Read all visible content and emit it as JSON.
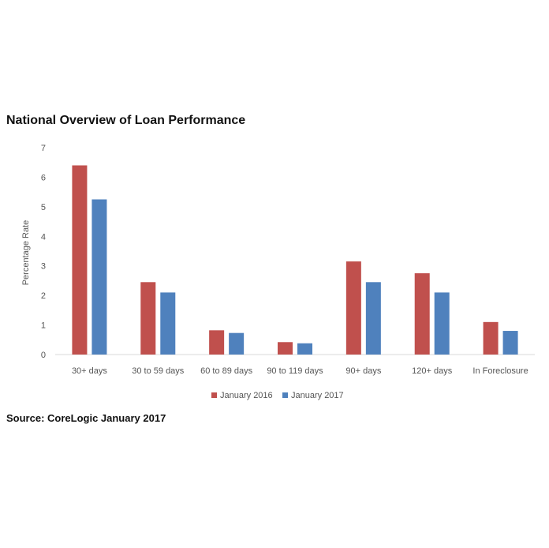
{
  "chart_data": {
    "type": "bar",
    "title": "National Overview of Loan Performance",
    "ylabel": "Percentage Rate",
    "xlabel": "",
    "ylim": [
      0,
      7
    ],
    "yticks": [
      0,
      1,
      2,
      3,
      4,
      5,
      6,
      7
    ],
    "grid": false,
    "legend_position": "bottom",
    "categories": [
      "30+ days",
      "30 to 59 days",
      "60 to 89 days",
      "90 to 119 days",
      "90+ days",
      "120+ days",
      "In Foreclosure"
    ],
    "series": [
      {
        "name": "January 2016",
        "color": "#c0504d",
        "values": [
          6.4,
          2.45,
          0.82,
          0.42,
          3.15,
          2.75,
          1.1
        ]
      },
      {
        "name": "January 2017",
        "color": "#4f81bd",
        "values": [
          5.25,
          2.1,
          0.73,
          0.38,
          2.45,
          2.1,
          0.8
        ]
      }
    ]
  },
  "source": "Source: CoreLogic January 2017"
}
